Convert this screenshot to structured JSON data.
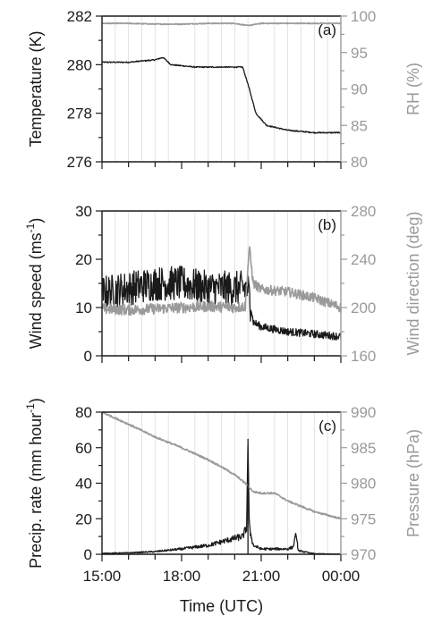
{
  "chart_data": [
    {
      "type": "line",
      "panel_label": "(a)",
      "x_range": [
        "15:00",
        "00:00"
      ],
      "x_tick_labels": [
        "15:00",
        "18:00",
        "21:00",
        "00:00"
      ],
      "grid": "vertical grey lines",
      "left_axis": {
        "label": "Temperature (K)",
        "ylim": [
          276,
          282
        ],
        "ticks": [
          "276",
          "278",
          "280",
          "282"
        ],
        "color": "#1a1a1a"
      },
      "right_axis": {
        "label": "RH (%)",
        "ylim": [
          80,
          100
        ],
        "ticks": [
          "80",
          "85",
          "90",
          "95",
          "100"
        ],
        "color": "#9a9a9a"
      },
      "series": [
        {
          "axis": "left",
          "color": "#1a1a1a",
          "x": [
            15.0,
            16.0,
            17.0,
            17.3,
            17.6,
            18.5,
            19.5,
            20.0,
            20.3,
            20.5,
            20.8,
            21.2,
            22.0,
            23.0,
            24.0
          ],
          "y": [
            280.1,
            280.1,
            280.2,
            280.3,
            280.0,
            279.9,
            279.9,
            279.9,
            279.9,
            279.2,
            278.0,
            277.5,
            277.3,
            277.2,
            277.2
          ]
        },
        {
          "axis": "right",
          "color": "#9a9a9a",
          "x": [
            15.0,
            16.0,
            17.0,
            18.0,
            19.0,
            20.0,
            20.5,
            21.0,
            22.0,
            23.0,
            24.0
          ],
          "y": [
            99.0,
            99.0,
            98.9,
            98.9,
            99.0,
            99.0,
            98.7,
            99.0,
            99.0,
            99.0,
            99.0
          ]
        }
      ]
    },
    {
      "type": "line",
      "panel_label": "(b)",
      "x_range": [
        "15:00",
        "00:00"
      ],
      "x_tick_labels": [
        "15:00",
        "18:00",
        "21:00",
        "00:00"
      ],
      "grid": "vertical grey lines",
      "left_axis": {
        "label": "Wind speed (ms-1)",
        "label_parts": [
          "Wind speed (ms",
          "-1",
          ")"
        ],
        "ylim": [
          0,
          30
        ],
        "ticks": [
          "0",
          "10",
          "20",
          "30"
        ],
        "color": "#1a1a1a"
      },
      "right_axis": {
        "label": "Wind direction (deg)",
        "ylim": [
          160,
          280
        ],
        "ticks": [
          "160",
          "200",
          "240",
          "280"
        ],
        "color": "#9a9a9a"
      },
      "series": [
        {
          "axis": "left",
          "color": "#1a1a1a",
          "x": [
            15.0,
            16.0,
            17.0,
            18.0,
            19.0,
            20.0,
            20.5,
            20.7,
            21.0,
            22.0,
            23.0,
            24.0
          ],
          "y": [
            13.0,
            14.0,
            15.0,
            15.0,
            14.0,
            14.0,
            14.0,
            7.0,
            6.0,
            5.0,
            4.5,
            4.0
          ]
        },
        {
          "axis": "right",
          "color": "#9a9a9a",
          "x": [
            15.0,
            16.0,
            17.0,
            18.0,
            19.0,
            20.0,
            20.4,
            20.55,
            20.7,
            21.0,
            22.0,
            23.0,
            24.0
          ],
          "y": [
            199,
            198,
            199,
            200,
            201,
            200,
            201,
            250,
            220,
            215,
            213,
            208,
            200
          ]
        }
      ]
    },
    {
      "type": "line",
      "panel_label": "(c)",
      "x_range": [
        "15:00",
        "00:00"
      ],
      "x_tick_labels": [
        "15:00",
        "18:00",
        "21:00",
        "00:00"
      ],
      "xlabel": "Time (UTC)",
      "grid": "vertical grey lines",
      "left_axis": {
        "label": "Precip. rate (mm hour-1)",
        "label_parts": [
          "Precip. rate (mm hour",
          "-1",
          ")"
        ],
        "ylim": [
          0,
          80
        ],
        "ticks": [
          "0",
          "20",
          "40",
          "60",
          "80"
        ],
        "color": "#1a1a1a"
      },
      "right_axis": {
        "label": "Pressure (hPa)",
        "ylim": [
          970,
          990
        ],
        "ticks": [
          "970",
          "975",
          "980",
          "985",
          "990"
        ],
        "color": "#9a9a9a"
      },
      "series": [
        {
          "axis": "left",
          "color": "#1a1a1a",
          "x": [
            15.0,
            16.0,
            17.0,
            18.0,
            19.0,
            19.5,
            20.0,
            20.3,
            20.45,
            20.5,
            20.55,
            20.7,
            21.0,
            21.5,
            22.0,
            22.2,
            22.3,
            22.4,
            23.0,
            24.0
          ],
          "y": [
            0.5,
            0.8,
            1.5,
            3.0,
            5.0,
            7.0,
            9.0,
            10.0,
            15.0,
            65.0,
            15.0,
            5.0,
            3.0,
            3.0,
            3.0,
            4.0,
            12.0,
            2.0,
            0.3,
            0.0
          ]
        },
        {
          "axis": "right",
          "color": "#9a9a9a",
          "x": [
            15.0,
            16.0,
            17.0,
            18.0,
            19.0,
            19.5,
            20.0,
            20.4,
            20.7,
            21.0,
            21.5,
            22.0,
            23.0,
            24.0
          ],
          "y": [
            990.0,
            988.3,
            986.5,
            985.0,
            983.3,
            982.3,
            981.2,
            980.0,
            978.8,
            978.6,
            978.6,
            977.5,
            976.0,
            975.0
          ]
        }
      ]
    }
  ]
}
